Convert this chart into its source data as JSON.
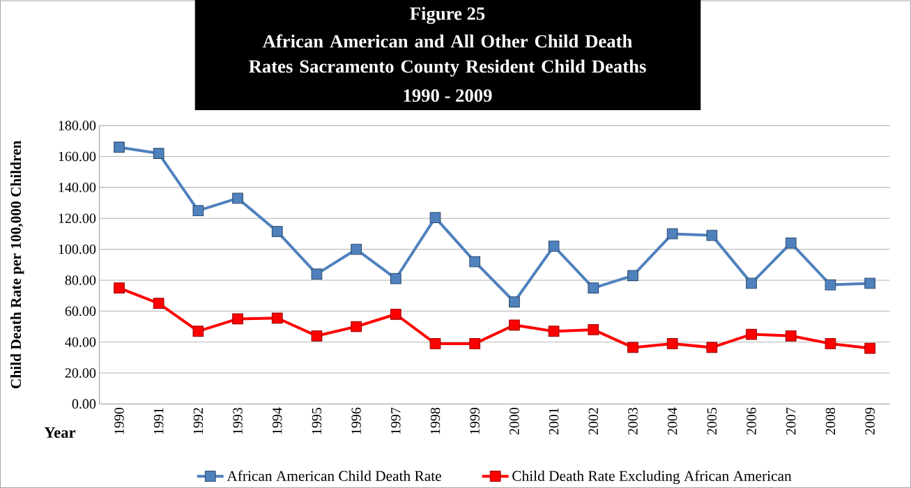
{
  "chart_data": {
    "type": "line",
    "title": "Figure 25",
    "subtitle": "African American and All  Other Child Death Rates Sacramento County Resident Child Deaths",
    "annotations": [
      "1990 - 2009"
    ],
    "xlabel": "Year",
    "ylabel": "Child Death Rate per 100,000 Children",
    "categories": [
      "1990",
      "1991",
      "1992",
      "1993",
      "1994",
      "1995",
      "1996",
      "1997",
      "1998",
      "1999",
      "2000",
      "2001",
      "2002",
      "2003",
      "2004",
      "2005",
      "2006",
      "2007",
      "2008",
      "2009"
    ],
    "series": [
      {
        "name": "African American Child Death Rate",
        "color": "#4f81bd",
        "values": [
          166,
          162,
          125,
          133,
          111.5,
          84,
          100,
          81,
          120.5,
          92,
          66,
          102,
          75,
          83,
          110,
          109,
          78,
          104,
          77,
          78
        ]
      },
      {
        "name": "Child Death Rate Excluding African American",
        "color": "#ff0000",
        "values": [
          75,
          65,
          47,
          55,
          55.5,
          44,
          50,
          58,
          39,
          39,
          51,
          47,
          48,
          36.5,
          39,
          36.5,
          45,
          44,
          39,
          36
        ]
      }
    ],
    "ylim": [
      0,
      180
    ],
    "yticks": [
      {
        "value": 0,
        "label": "0.00"
      },
      {
        "value": 20,
        "label": "20.00"
      },
      {
        "value": 40,
        "label": "40.00"
      },
      {
        "value": 60,
        "label": "60.00"
      },
      {
        "value": 80,
        "label": "80.00"
      },
      {
        "value": 100,
        "label": "100.00"
      },
      {
        "value": 120,
        "label": "120.00"
      },
      {
        "value": 140,
        "label": "140.00"
      },
      {
        "value": 160,
        "label": "160.00"
      },
      {
        "value": 180,
        "label": "180.00"
      }
    ],
    "grid": "y",
    "legend": "bottom",
    "marker": "square",
    "line_style": "solid"
  }
}
